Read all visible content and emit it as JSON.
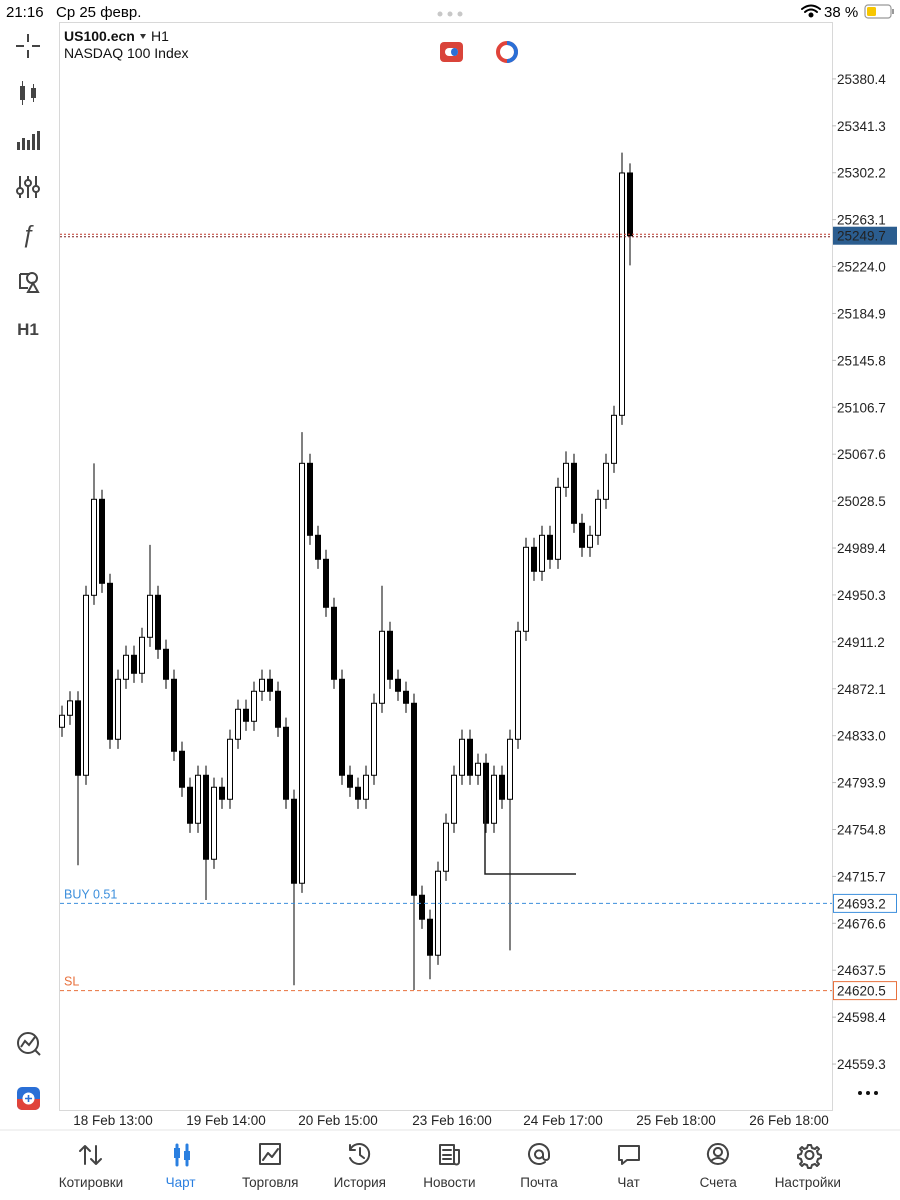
{
  "status_bar": {
    "time": "21:16",
    "date": "Ср 25 февр.",
    "battery": "38 %"
  },
  "header": {
    "symbol": "US100.ecn",
    "timeframe": "H1",
    "description": "NASDAQ 100 Index"
  },
  "toolbar": {
    "timeframe": "H1"
  },
  "chart_data": {
    "type": "candlestick",
    "x_labels": [
      "18 Feb 13:00",
      "19 Feb 14:00",
      "20 Feb 15:00",
      "23 Feb 16:00",
      "24 Feb 17:00",
      "25 Feb 18:00",
      "26 Feb 18:00"
    ],
    "open": [
      24840,
      24850,
      24862,
      24800,
      24950,
      25030,
      24960,
      24830,
      24880,
      24900,
      24885,
      24915,
      24950,
      24905,
      24880,
      24820,
      24790,
      24760,
      24800,
      24730,
      24790,
      24780,
      24830,
      24855,
      24845,
      24870,
      24880,
      24870,
      24840,
      24780,
      24710,
      25060,
      25000,
      24980,
      24940,
      24880,
      24800,
      24790,
      24780,
      24800,
      24860,
      24920,
      24880,
      24870,
      24860,
      24700,
      24680,
      24650,
      24720,
      24760,
      24800,
      24830,
      24800,
      24810,
      24760,
      24800,
      24780,
      24830,
      24920,
      24990,
      24970,
      25000,
      24980,
      25040,
      25060,
      25010,
      24990,
      25000,
      25030,
      25060,
      25100,
      25302
    ],
    "high": [
      24858,
      24870,
      24870,
      24958,
      25060,
      25038,
      24968,
      24888,
      24908,
      24908,
      24923,
      24992,
      24958,
      24913,
      24888,
      24828,
      24798,
      24808,
      24808,
      24798,
      24798,
      24838,
      24863,
      24863,
      24878,
      24888,
      24888,
      24878,
      24848,
      24788,
      25086,
      25068,
      25008,
      24988,
      24948,
      24888,
      24808,
      24798,
      24808,
      24868,
      24958,
      24928,
      24888,
      24878,
      24868,
      24708,
      24688,
      24728,
      24768,
      24808,
      24838,
      24838,
      24818,
      24818,
      24808,
      24808,
      24838,
      24928,
      24998,
      24998,
      25008,
      25008,
      25048,
      25070,
      25068,
      25018,
      25008,
      25038,
      25068,
      25108,
      25319,
      25310
    ],
    "low": [
      24832,
      24842,
      24725,
      24792,
      24942,
      24952,
      24822,
      24822,
      24872,
      24877,
      24877,
      24907,
      24897,
      24872,
      24812,
      24782,
      24752,
      24752,
      24696,
      24722,
      24772,
      24772,
      24822,
      24837,
      24837,
      24862,
      24862,
      24832,
      24772,
      24625,
      24702,
      24992,
      24972,
      24932,
      24872,
      24792,
      24782,
      24772,
      24772,
      24792,
      24852,
      24872,
      24862,
      24852,
      24621,
      24672,
      24630,
      24642,
      24712,
      24752,
      24792,
      24792,
      24792,
      24752,
      24752,
      24772,
      24654,
      24822,
      24912,
      24962,
      24962,
      24972,
      24972,
      25032,
      25002,
      24982,
      24982,
      24992,
      25022,
      25052,
      25092,
      25225
    ],
    "close": [
      24850,
      24862,
      24800,
      24950,
      25030,
      24960,
      24830,
      24880,
      24900,
      24885,
      24915,
      24950,
      24905,
      24880,
      24820,
      24790,
      24760,
      24800,
      24730,
      24790,
      24780,
      24830,
      24855,
      24845,
      24870,
      24880,
      24870,
      24840,
      24780,
      24710,
      25060,
      25000,
      24980,
      24940,
      24880,
      24800,
      24790,
      24780,
      24800,
      24860,
      24920,
      24880,
      24870,
      24860,
      24700,
      24680,
      24650,
      24720,
      24760,
      24800,
      24830,
      24800,
      24810,
      24760,
      24800,
      24780,
      24830,
      24920,
      24990,
      24970,
      25000,
      24980,
      25040,
      25060,
      25010,
      24990,
      25000,
      25030,
      25060,
      25100,
      25302,
      25249.7
    ],
    "up_color": "#ffffff",
    "down_color": "#000000",
    "ylim": [
      24521,
      25427
    ],
    "yticks": [
      25380.4,
      25341.3,
      25302.2,
      25263.1,
      {
        "value": 25224,
        "label": "25224.0"
      },
      25184.9,
      25145.8,
      25106.7,
      25067.6,
      25028.5,
      24989.4,
      24950.3,
      24911.2,
      24872.1,
      {
        "value": 24833,
        "label": "24833.0"
      },
      24793.9,
      24754.8,
      24715.7,
      24676.6,
      24637.5,
      24598.4,
      24559.3
    ],
    "current_price": 25249.7,
    "price_lines": [
      {
        "label": "BUY 0.51",
        "value": 24693.2,
        "color": "#3c8fdc"
      },
      {
        "label": "SL",
        "value": 24620.5,
        "color": "#e8703c"
      }
    ]
  },
  "tabs": [
    {
      "label": "Котировки"
    },
    {
      "label": "Чарт"
    },
    {
      "label": "Торговля"
    },
    {
      "label": "История"
    },
    {
      "label": "Новости"
    },
    {
      "label": "Почта"
    },
    {
      "label": "Чат"
    },
    {
      "label": "Счета"
    },
    {
      "label": "Настройки"
    }
  ],
  "active_tab": 1
}
